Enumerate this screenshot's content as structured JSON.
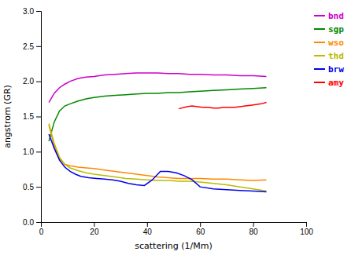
{
  "chart_data": {
    "type": "line",
    "xlabel": "scattering (1/Mm)",
    "ylabel": "angstrom (GR)",
    "xlim": [
      0,
      100
    ],
    "ylim": [
      0.0,
      3.0
    ],
    "xticks": [
      0,
      20,
      40,
      60,
      80,
      100
    ],
    "yticks": [
      {
        "value": 0,
        "label": "0.0"
      },
      0.5,
      {
        "value": 1,
        "label": "1.0"
      },
      1.5,
      {
        "value": 2,
        "label": "2.0"
      },
      2.5,
      {
        "value": 3,
        "label": "3.0"
      }
    ],
    "grid": false,
    "legend": "right",
    "series": [
      {
        "name": "bnd",
        "color": "#cc00cc",
        "x": [
          3,
          5,
          7,
          9,
          11,
          14,
          17,
          20,
          24,
          28,
          32,
          36,
          40,
          44,
          48,
          52,
          56,
          60,
          65,
          70,
          75,
          80,
          85
        ],
        "values": [
          1.7,
          1.83,
          1.91,
          1.96,
          2.0,
          2.04,
          2.06,
          2.07,
          2.09,
          2.1,
          2.11,
          2.12,
          2.12,
          2.12,
          2.11,
          2.11,
          2.1,
          2.1,
          2.09,
          2.09,
          2.08,
          2.08,
          2.07
        ]
      },
      {
        "name": "sgp",
        "color": "#008800",
        "x": [
          3,
          5,
          7,
          9,
          11,
          14,
          17,
          20,
          24,
          28,
          32,
          36,
          40,
          44,
          48,
          52,
          56,
          60,
          65,
          70,
          75,
          80,
          85
        ],
        "values": [
          1.15,
          1.42,
          1.58,
          1.65,
          1.68,
          1.72,
          1.75,
          1.77,
          1.79,
          1.8,
          1.81,
          1.82,
          1.83,
          1.83,
          1.84,
          1.84,
          1.85,
          1.86,
          1.87,
          1.88,
          1.89,
          1.9,
          1.91
        ]
      },
      {
        "name": "wso",
        "color": "#ff8800",
        "x": [
          3,
          5,
          7,
          9,
          11,
          14,
          17,
          20,
          24,
          28,
          32,
          36,
          40,
          44,
          48,
          52,
          56,
          60,
          65,
          70,
          75,
          80,
          85
        ],
        "values": [
          1.38,
          1.08,
          0.9,
          0.82,
          0.8,
          0.78,
          0.77,
          0.76,
          0.74,
          0.72,
          0.7,
          0.68,
          0.66,
          0.64,
          0.63,
          0.62,
          0.62,
          0.62,
          0.61,
          0.61,
          0.6,
          0.59,
          0.6
        ]
      },
      {
        "name": "thd",
        "color": "#bbbb00",
        "x": [
          3,
          5,
          7,
          9,
          11,
          14,
          17,
          20,
          24,
          28,
          32,
          36,
          40,
          44,
          48,
          52,
          56,
          60,
          65,
          70,
          75,
          80,
          85
        ],
        "values": [
          1.4,
          1.12,
          0.92,
          0.82,
          0.77,
          0.73,
          0.7,
          0.68,
          0.66,
          0.64,
          0.62,
          0.61,
          0.6,
          0.59,
          0.59,
          0.58,
          0.58,
          0.57,
          0.55,
          0.53,
          0.5,
          0.47,
          0.44
        ]
      },
      {
        "name": "brw",
        "color": "#0000ee",
        "x": [
          3,
          5,
          7,
          9,
          11,
          13,
          15,
          18,
          21,
          24,
          27,
          30,
          33,
          36,
          39,
          42,
          45,
          48,
          51,
          54,
          57,
          60,
          65,
          70,
          75,
          80,
          85
        ],
        "values": [
          1.25,
          1.05,
          0.88,
          0.78,
          0.72,
          0.68,
          0.65,
          0.63,
          0.62,
          0.61,
          0.6,
          0.58,
          0.55,
          0.53,
          0.52,
          0.6,
          0.72,
          0.72,
          0.7,
          0.66,
          0.6,
          0.5,
          0.47,
          0.46,
          0.45,
          0.44,
          0.43
        ]
      },
      {
        "name": "amy",
        "color": "#ff0000",
        "x": [
          52,
          55,
          57,
          59,
          61,
          63,
          65,
          67,
          69,
          71,
          73,
          75,
          77,
          79,
          81,
          83,
          85
        ],
        "values": [
          1.61,
          1.64,
          1.65,
          1.64,
          1.63,
          1.63,
          1.62,
          1.62,
          1.63,
          1.63,
          1.63,
          1.64,
          1.65,
          1.66,
          1.67,
          1.68,
          1.7
        ]
      }
    ]
  }
}
